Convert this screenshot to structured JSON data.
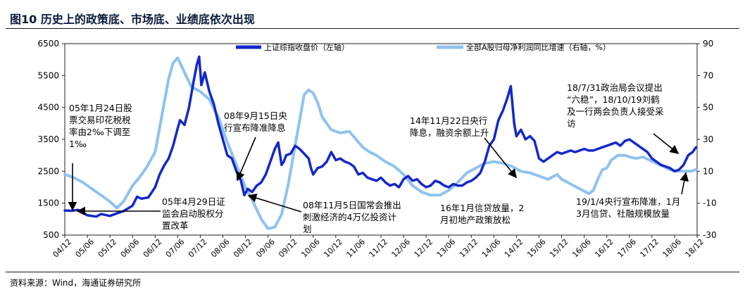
{
  "title": "图10 历史上的政策底、市场底、业绩底依次出现",
  "source": "资料来源：Wind，海通证券研究所",
  "colors": {
    "index": "#1428c8",
    "profit": "#8fc3ee"
  },
  "chart_data": {
    "type": "line",
    "xlabels": [
      "04/12",
      "05/06",
      "05/12",
      "06/06",
      "06/12",
      "07/06",
      "07/12",
      "08/06",
      "08/12",
      "09/06",
      "09/12",
      "10/06",
      "10/12",
      "11/06",
      "11/12",
      "12/06",
      "12/12",
      "13/06",
      "13/12",
      "14/06",
      "14/12",
      "15/06",
      "15/12",
      "16/06",
      "16/12",
      "17/06",
      "17/12",
      "18/06",
      "18/12"
    ],
    "y_left": {
      "min": 500,
      "max": 6500,
      "ticks": [
        "500",
        "1500",
        "2500",
        "3500",
        "4500",
        "5500",
        "6500"
      ]
    },
    "y_right": {
      "min": -30,
      "max": 90,
      "ticks": [
        "-30",
        "-10",
        "10",
        "30",
        "50",
        "70",
        "90"
      ]
    },
    "series": [
      {
        "name": "上证综指收盘价（左轴）",
        "axis": "left",
        "points": [
          [
            0,
            1270
          ],
          [
            0.3,
            1260
          ],
          [
            0.6,
            1290
          ],
          [
            1.0,
            1120
          ],
          [
            1.2,
            1100
          ],
          [
            1.4,
            1080
          ],
          [
            1.6,
            1160
          ],
          [
            2.0,
            1100
          ],
          [
            2.3,
            1180
          ],
          [
            2.6,
            1250
          ],
          [
            3.0,
            1420
          ],
          [
            3.2,
            1700
          ],
          [
            3.4,
            1640
          ],
          [
            3.7,
            1680
          ],
          [
            4.0,
            2000
          ],
          [
            4.2,
            2400
          ],
          [
            4.4,
            2680
          ],
          [
            4.6,
            2900
          ],
          [
            4.8,
            3300
          ],
          [
            5.0,
            3850
          ],
          [
            5.1,
            4100
          ],
          [
            5.3,
            3950
          ],
          [
            5.5,
            4500
          ],
          [
            5.7,
            5300
          ],
          [
            5.85,
            5850
          ],
          [
            5.95,
            6092
          ],
          [
            6.05,
            5200
          ],
          [
            6.2,
            5600
          ],
          [
            6.4,
            5000
          ],
          [
            6.6,
            4600
          ],
          [
            6.8,
            4000
          ],
          [
            7.0,
            3500
          ],
          [
            7.2,
            3000
          ],
          [
            7.4,
            2900
          ],
          [
            7.6,
            2500
          ],
          [
            7.8,
            2200
          ],
          [
            7.95,
            1750
          ],
          [
            8.1,
            1950
          ],
          [
            8.3,
            1850
          ],
          [
            8.5,
            2050
          ],
          [
            8.7,
            2150
          ],
          [
            8.9,
            2400
          ],
          [
            9.1,
            2800
          ],
          [
            9.3,
            3200
          ],
          [
            9.45,
            3400
          ],
          [
            9.6,
            2700
          ],
          [
            9.7,
            2800
          ],
          [
            9.8,
            3000
          ],
          [
            10.0,
            3050
          ],
          [
            10.2,
            3300
          ],
          [
            10.4,
            3200
          ],
          [
            10.6,
            3050
          ],
          [
            10.8,
            2900
          ],
          [
            10.9,
            2600
          ],
          [
            11.0,
            2400
          ],
          [
            11.2,
            2600
          ],
          [
            11.4,
            2650
          ],
          [
            11.6,
            2800
          ],
          [
            11.8,
            3100
          ],
          [
            12.0,
            2850
          ],
          [
            12.2,
            2900
          ],
          [
            12.4,
            2800
          ],
          [
            12.6,
            2750
          ],
          [
            12.8,
            2650
          ],
          [
            13.0,
            2400
          ],
          [
            13.2,
            2450
          ],
          [
            13.4,
            2300
          ],
          [
            13.6,
            2250
          ],
          [
            13.8,
            2200
          ],
          [
            14.0,
            2300
          ],
          [
            14.2,
            2150
          ],
          [
            14.4,
            2050
          ],
          [
            14.6,
            2100
          ],
          [
            14.8,
            2000
          ],
          [
            15.0,
            2250
          ],
          [
            15.2,
            2350
          ],
          [
            15.4,
            2200
          ],
          [
            15.6,
            2250
          ],
          [
            15.8,
            2100
          ],
          [
            16.0,
            2000
          ],
          [
            16.2,
            2050
          ],
          [
            16.4,
            2200
          ],
          [
            16.6,
            2150
          ],
          [
            16.8,
            2050
          ],
          [
            17.0,
            2000
          ],
          [
            17.2,
            2100
          ],
          [
            17.4,
            2050
          ],
          [
            17.6,
            2050
          ],
          [
            17.8,
            2150
          ],
          [
            18.0,
            2200
          ],
          [
            18.2,
            2300
          ],
          [
            18.4,
            2450
          ],
          [
            18.6,
            2800
          ],
          [
            18.8,
            3300
          ],
          [
            19.0,
            3500
          ],
          [
            19.2,
            4100
          ],
          [
            19.4,
            4400
          ],
          [
            19.6,
            4800
          ],
          [
            19.75,
            5166
          ],
          [
            19.9,
            4000
          ],
          [
            20.0,
            3600
          ],
          [
            20.2,
            3800
          ],
          [
            20.4,
            3500
          ],
          [
            20.6,
            3600
          ],
          [
            20.8,
            3450
          ],
          [
            21.0,
            2900
          ],
          [
            21.2,
            2800
          ],
          [
            21.4,
            2900
          ],
          [
            21.6,
            3000
          ],
          [
            21.8,
            3100
          ],
          [
            22.0,
            3050
          ],
          [
            22.2,
            3100
          ],
          [
            22.4,
            3150
          ],
          [
            22.6,
            3100
          ],
          [
            22.8,
            3150
          ],
          [
            23.0,
            3200
          ],
          [
            23.2,
            3150
          ],
          [
            23.4,
            3150
          ],
          [
            23.6,
            3200
          ],
          [
            23.8,
            3250
          ],
          [
            24.0,
            3300
          ],
          [
            24.2,
            3350
          ],
          [
            24.4,
            3400
          ],
          [
            24.6,
            3300
          ],
          [
            24.8,
            3450
          ],
          [
            25.0,
            3500
          ],
          [
            25.2,
            3400
          ],
          [
            25.4,
            3300
          ],
          [
            25.6,
            3200
          ],
          [
            25.8,
            3100
          ],
          [
            26.0,
            2900
          ],
          [
            26.2,
            2800
          ],
          [
            26.4,
            2700
          ],
          [
            26.6,
            2650
          ],
          [
            26.8,
            2600
          ],
          [
            27.0,
            2500
          ],
          [
            27.2,
            2550
          ],
          [
            27.4,
            2700
          ],
          [
            27.6,
            3000
          ],
          [
            27.8,
            3100
          ],
          [
            27.95,
            3250
          ]
        ]
      },
      {
        "name": "全部A股归母净利润同比增速（右轴，%）",
        "axis": "right",
        "points": [
          [
            0,
            8
          ],
          [
            0.4,
            6
          ],
          [
            0.8,
            3
          ],
          [
            1.2,
            -1
          ],
          [
            1.6,
            -5
          ],
          [
            2.0,
            -9
          ],
          [
            2.3,
            -13
          ],
          [
            2.6,
            -9
          ],
          [
            3.0,
            1
          ],
          [
            3.3,
            6
          ],
          [
            3.6,
            12
          ],
          [
            4.0,
            22
          ],
          [
            4.3,
            45
          ],
          [
            4.6,
            68
          ],
          [
            4.8,
            78
          ],
          [
            5.0,
            81
          ],
          [
            5.3,
            72
          ],
          [
            5.6,
            63
          ],
          [
            6.0,
            60
          ],
          [
            6.4,
            55
          ],
          [
            6.8,
            44
          ],
          [
            7.2,
            28
          ],
          [
            7.6,
            14
          ],
          [
            8.0,
            0
          ],
          [
            8.3,
            -8
          ],
          [
            8.7,
            -20
          ],
          [
            9.0,
            -26
          ],
          [
            9.3,
            -25
          ],
          [
            9.6,
            -17
          ],
          [
            9.9,
            2
          ],
          [
            10.2,
            26
          ],
          [
            10.4,
            42
          ],
          [
            10.6,
            58
          ],
          [
            10.8,
            61
          ],
          [
            11.0,
            59
          ],
          [
            11.2,
            53
          ],
          [
            11.4,
            44
          ],
          [
            11.8,
            36
          ],
          [
            12.2,
            34
          ],
          [
            12.6,
            35
          ],
          [
            12.9,
            30
          ],
          [
            13.2,
            25
          ],
          [
            13.5,
            22
          ],
          [
            13.8,
            20
          ],
          [
            14.2,
            16
          ],
          [
            14.6,
            13
          ],
          [
            15.0,
            8
          ],
          [
            15.4,
            1
          ],
          [
            15.8,
            -3
          ],
          [
            16.2,
            -5
          ],
          [
            16.6,
            -5
          ],
          [
            17.0,
            -2
          ],
          [
            17.4,
            3
          ],
          [
            17.8,
            9
          ],
          [
            18.2,
            12
          ],
          [
            18.6,
            15
          ],
          [
            19.0,
            16
          ],
          [
            19.4,
            15
          ],
          [
            19.8,
            13
          ],
          [
            20.2,
            10
          ],
          [
            20.6,
            9
          ],
          [
            21.0,
            7
          ],
          [
            21.4,
            5
          ],
          [
            21.8,
            8
          ],
          [
            22.0,
            5
          ],
          [
            22.4,
            2
          ],
          [
            22.8,
            -1
          ],
          [
            23.2,
            -4
          ],
          [
            23.4,
            -2
          ],
          [
            23.6,
            5
          ],
          [
            23.8,
            11
          ],
          [
            24.0,
            12
          ],
          [
            24.2,
            17
          ],
          [
            24.5,
            20
          ],
          [
            24.8,
            20
          ],
          [
            25.0,
            19
          ],
          [
            25.3,
            18
          ],
          [
            25.6,
            19
          ],
          [
            25.9,
            17
          ],
          [
            26.2,
            15
          ],
          [
            26.5,
            13
          ],
          [
            26.8,
            11
          ],
          [
            27.1,
            10
          ],
          [
            27.4,
            10
          ],
          [
            27.7,
            10
          ],
          [
            27.95,
            11
          ]
        ]
      }
    ]
  },
  "annotations": [
    {
      "lines": [
        "05年1月24日股",
        "票交易印花税税",
        "率由2‰下调至",
        "1‰"
      ]
    },
    {
      "lines": [
        "05年4月29日证",
        "监会启动股权分",
        "置改革"
      ]
    },
    {
      "lines": [
        "08年9月15日央",
        "行宣布降准降息"
      ]
    },
    {
      "lines": [
        "08年11月5日国常会推出",
        "刺激经济的4万亿投资计",
        "划"
      ]
    },
    {
      "lines": [
        "14年11月22日央行",
        "降息，融资余额上升"
      ]
    },
    {
      "lines": [
        "16年1月信贷放量，2",
        "月初地产政策放松"
      ]
    },
    {
      "lines": [
        "18/7/31政治局会议提出",
        "“六稳”，18/10/19刘鹤",
        "及一行两会负责人接受采",
        "访"
      ]
    },
    {
      "lines": [
        "19/1/4央行宣布降准，1月",
        "3月信贷、社融规模放量"
      ]
    }
  ]
}
